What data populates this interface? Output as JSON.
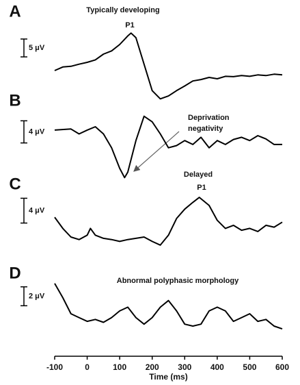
{
  "chart_data": [
    {
      "type": "line",
      "panel": "A",
      "title": "Typically developing",
      "annotations": [
        "P1"
      ],
      "scale_bar": {
        "value": 5,
        "label": "5 μV"
      },
      "color": "#000000",
      "xlim": [
        -100,
        600
      ],
      "ylim": [
        -8,
        15
      ],
      "x": [
        -100,
        -75,
        -50,
        -25,
        0,
        25,
        50,
        75,
        100,
        125,
        135,
        150,
        175,
        200,
        225,
        250,
        275,
        300,
        325,
        350,
        375,
        400,
        425,
        450,
        475,
        500,
        525,
        550,
        575,
        600
      ],
      "values": [
        1,
        2,
        2.2,
        2.8,
        3.3,
        4,
        5.6,
        6.5,
        8.3,
        10.7,
        11.5,
        10.2,
        2.8,
        -4.6,
        -6.9,
        -6.1,
        -4.6,
        -3.3,
        -1.9,
        -1.5,
        -0.9,
        -1.3,
        -0.6,
        -0.7,
        -0.4,
        -0.6,
        -0.2,
        -0.4,
        0,
        -0.2
      ]
    },
    {
      "type": "line",
      "panel": "B",
      "annotations": [
        "Deprivation",
        "negativity"
      ],
      "scale_bar": {
        "value": 4,
        "label": "4 μV"
      },
      "color": "#000000",
      "xlim": [
        -100,
        600
      ],
      "ylim": [
        -8,
        5
      ],
      "x": [
        -100,
        -50,
        -25,
        0,
        25,
        50,
        75,
        100,
        115,
        125,
        150,
        175,
        200,
        225,
        250,
        275,
        300,
        325,
        350,
        375,
        400,
        425,
        450,
        475,
        500,
        525,
        550,
        575,
        600
      ],
      "values": [
        1.3,
        1.5,
        0.6,
        1.3,
        1.9,
        0.6,
        -1.9,
        -5.6,
        -7.3,
        -6.3,
        -0.6,
        3.8,
        2.8,
        0.6,
        -1.9,
        -1.5,
        -0.6,
        -1.3,
        0,
        -1.9,
        -0.6,
        -1.3,
        -0.4,
        0,
        -0.6,
        0.3,
        -0.3,
        -1.3,
        -1.3
      ]
    },
    {
      "type": "line",
      "panel": "C",
      "annotations": [
        "Delayed",
        "P1"
      ],
      "scale_bar": {
        "value": 4,
        "label": "4 μV"
      },
      "color": "#000000",
      "xlim": [
        -100,
        600
      ],
      "ylim": [
        -3,
        7.5
      ],
      "x": [
        -100,
        -75,
        -50,
        -25,
        0,
        10,
        25,
        50,
        75,
        100,
        125,
        150,
        175,
        200,
        225,
        250,
        275,
        300,
        325,
        345,
        375,
        400,
        425,
        450,
        475,
        500,
        525,
        550,
        575,
        600
      ],
      "values": [
        3.4,
        1.6,
        0.2,
        -0.2,
        0.5,
        1.6,
        0.5,
        0,
        -0.2,
        -0.5,
        -0.2,
        0,
        0.2,
        -0.5,
        -1.1,
        0.5,
        3.2,
        4.7,
        5.8,
        6.6,
        5.3,
        2.9,
        1.6,
        2.1,
        1.3,
        1.6,
        1.1,
        2.1,
        1.8,
        2.6
      ]
    },
    {
      "type": "line",
      "panel": "D",
      "annotations": [
        "Abnormal polyphasic morphology"
      ],
      "scale_bar": {
        "value": 2,
        "label": "2 μV"
      },
      "color": "#000000",
      "xlim": [
        -100,
        600
      ],
      "ylim": [
        -3,
        4.6
      ],
      "xticks": [
        -100,
        0,
        100,
        200,
        300,
        400,
        500,
        600
      ],
      "xlabel": "Time (ms)",
      "x": [
        -100,
        -75,
        -50,
        -25,
        0,
        25,
        50,
        75,
        100,
        125,
        150,
        175,
        200,
        225,
        250,
        275,
        300,
        325,
        350,
        375,
        400,
        425,
        450,
        475,
        500,
        525,
        550,
        575,
        600
      ],
      "values": [
        3.6,
        2.1,
        0.4,
        0,
        -0.4,
        -0.2,
        -0.5,
        0,
        0.7,
        1.1,
        0,
        -0.7,
        0,
        1.1,
        1.8,
        0.7,
        -0.7,
        -0.9,
        -0.7,
        0.7,
        1.1,
        0.7,
        -0.4,
        0,
        0.4,
        -0.4,
        -0.2,
        -0.9,
        -1.2
      ]
    }
  ]
}
